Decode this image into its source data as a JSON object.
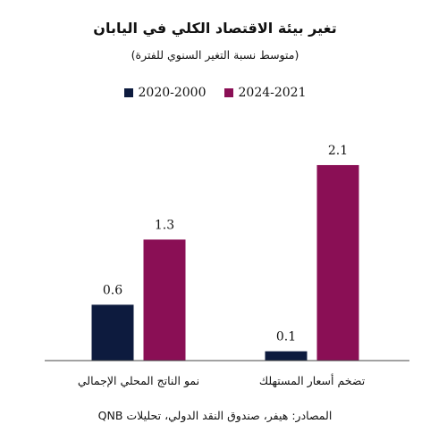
{
  "chart_data": {
    "type": "bar",
    "title": "تغير بيئة الاقتصاد الكلي في اليابان",
    "subtitle": "(متوسط نسبة التغير السنوي للفترة)",
    "categories": [
      "نمو الناتج المحلي الإجمالي",
      "تضخم أسعار المستهلك"
    ],
    "series": [
      {
        "name": "2020-2000",
        "values": [
          0.6,
          0.1
        ],
        "color": "#0d1b3e"
      },
      {
        "name": "2024-2021",
        "values": [
          1.3,
          2.1
        ],
        "color": "#8a0f55"
      }
    ],
    "value_labels": [
      [
        "0.6",
        "0.1"
      ],
      [
        "1.3",
        "2.1"
      ]
    ],
    "ylim": [
      0,
      2.1
    ],
    "grid": false,
    "legend": "top-center",
    "source": "المصادر: هيفر، صندوق النقد الدولي، تحليلات QNB"
  }
}
